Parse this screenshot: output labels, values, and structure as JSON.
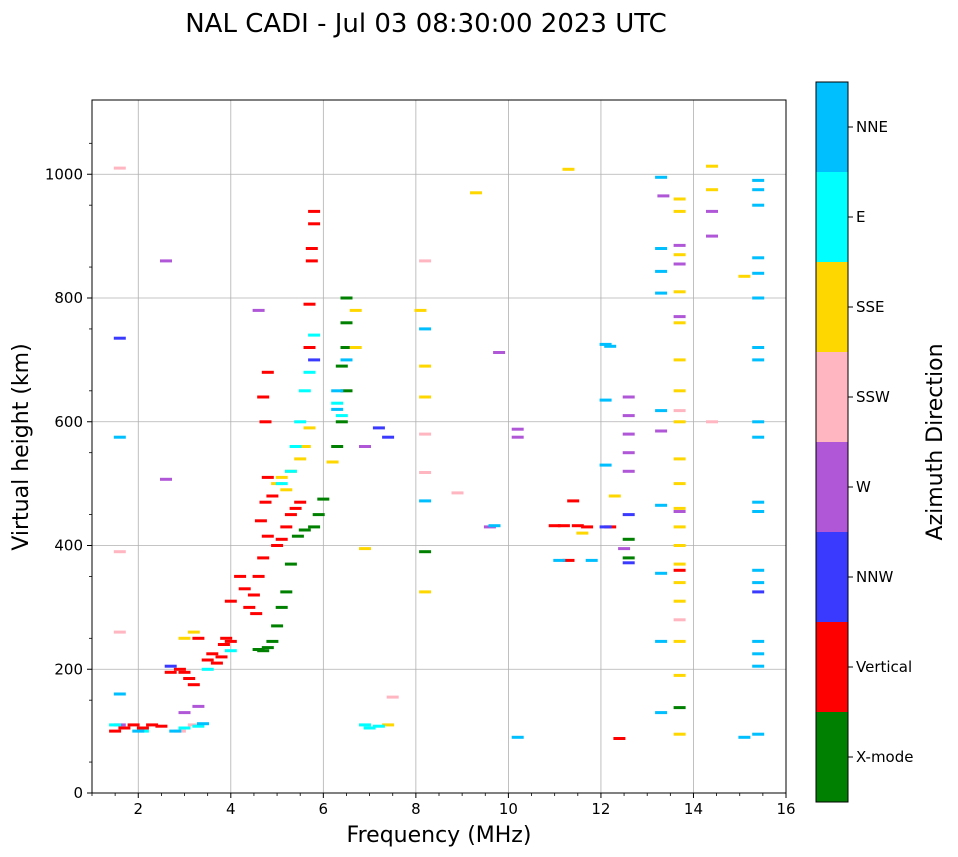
{
  "chart_data": {
    "type": "scatter",
    "title": "NAL CADI - Jul 03 08:30:00 2023 UTC",
    "xlabel": "Frequency (MHz)",
    "ylabel": "Virtual height (km)",
    "xlim": [
      1,
      16
    ],
    "ylim": [
      0,
      1120
    ],
    "xticks": [
      2,
      4,
      6,
      8,
      10,
      12,
      14,
      16
    ],
    "yticks": [
      0,
      200,
      400,
      600,
      800,
      1000
    ],
    "grid": true,
    "colorbar": {
      "title": "Azimuth Direction",
      "categories": [
        {
          "label": "X-mode",
          "color": "#008000"
        },
        {
          "label": "Vertical",
          "color": "#ff0000"
        },
        {
          "label": "NNW",
          "color": "#3a3aff"
        },
        {
          "label": "W",
          "color": "#b057d8"
        },
        {
          "label": "SSW",
          "color": "#ffb6c1"
        },
        {
          "label": "SSE",
          "color": "#ffd700"
        },
        {
          "label": "E",
          "color": "#00ffff"
        },
        {
          "label": "NNE",
          "color": "#00bfff"
        }
      ]
    },
    "series": [
      {
        "name": "Vertical",
        "color": "#ff0000",
        "points": [
          [
            1.5,
            100
          ],
          [
            1.7,
            105
          ],
          [
            1.9,
            110
          ],
          [
            2.1,
            105
          ],
          [
            2.3,
            110
          ],
          [
            2.5,
            108
          ],
          [
            2.7,
            195
          ],
          [
            2.9,
            200
          ],
          [
            3.0,
            195
          ],
          [
            3.1,
            185
          ],
          [
            3.2,
            175
          ],
          [
            3.3,
            250
          ],
          [
            3.5,
            215
          ],
          [
            3.6,
            225
          ],
          [
            3.7,
            210
          ],
          [
            3.8,
            220
          ],
          [
            3.85,
            240
          ],
          [
            3.9,
            250
          ],
          [
            4.0,
            245
          ],
          [
            4.0,
            310
          ],
          [
            4.2,
            350
          ],
          [
            4.3,
            330
          ],
          [
            4.4,
            300
          ],
          [
            4.5,
            320
          ],
          [
            4.55,
            290
          ],
          [
            4.6,
            350
          ],
          [
            4.65,
            440
          ],
          [
            4.7,
            380
          ],
          [
            4.8,
            415
          ],
          [
            4.75,
            470
          ],
          [
            4.8,
            510
          ],
          [
            4.7,
            640
          ],
          [
            4.75,
            600
          ],
          [
            4.8,
            680
          ],
          [
            4.9,
            480
          ],
          [
            5.0,
            400
          ],
          [
            5.1,
            410
          ],
          [
            5.2,
            430
          ],
          [
            5.3,
            450
          ],
          [
            5.4,
            460
          ],
          [
            5.5,
            470
          ],
          [
            5.7,
            720
          ],
          [
            5.7,
            790
          ],
          [
            5.75,
            880
          ],
          [
            5.8,
            920
          ],
          [
            5.8,
            940
          ],
          [
            5.75,
            860
          ],
          [
            11.0,
            432
          ],
          [
            11.2,
            432
          ],
          [
            11.5,
            432
          ],
          [
            11.3,
            376
          ],
          [
            11.7,
            430
          ],
          [
            12.2,
            430
          ],
          [
            12.4,
            88
          ],
          [
            13.7,
            360
          ],
          [
            11.4,
            472
          ]
        ]
      },
      {
        "name": "X-mode",
        "color": "#008000",
        "points": [
          [
            4.6,
            232
          ],
          [
            4.7,
            230
          ],
          [
            4.8,
            235
          ],
          [
            4.9,
            245
          ],
          [
            5.0,
            270
          ],
          [
            5.1,
            300
          ],
          [
            5.2,
            325
          ],
          [
            5.3,
            370
          ],
          [
            5.45,
            415
          ],
          [
            5.6,
            425
          ],
          [
            5.8,
            430
          ],
          [
            5.9,
            450
          ],
          [
            6.0,
            475
          ],
          [
            6.3,
            560
          ],
          [
            6.4,
            600
          ],
          [
            6.5,
            650
          ],
          [
            6.4,
            690
          ],
          [
            6.5,
            720
          ],
          [
            6.5,
            760
          ],
          [
            6.5,
            800
          ],
          [
            12.6,
            380
          ],
          [
            12.6,
            410
          ],
          [
            13.7,
            138
          ],
          [
            8.2,
            390
          ]
        ]
      },
      {
        "name": "NNW",
        "color": "#3a3aff",
        "points": [
          [
            1.6,
            735
          ],
          [
            2.7,
            205
          ],
          [
            5.8,
            700
          ],
          [
            7.2,
            590
          ],
          [
            7.4,
            575
          ],
          [
            12.1,
            430
          ],
          [
            12.6,
            450
          ],
          [
            12.6,
            372
          ],
          [
            15.4,
            325
          ]
        ]
      },
      {
        "name": "W",
        "color": "#b057d8",
        "points": [
          [
            1.6,
            110
          ],
          [
            2.6,
            860
          ],
          [
            2.6,
            507
          ],
          [
            3.0,
            130
          ],
          [
            3.3,
            140
          ],
          [
            4.6,
            780
          ],
          [
            6.9,
            560
          ],
          [
            9.6,
            430
          ],
          [
            9.8,
            712
          ],
          [
            10.2,
            588
          ],
          [
            10.2,
            575
          ],
          [
            12.6,
            640
          ],
          [
            12.6,
            610
          ],
          [
            12.6,
            580
          ],
          [
            12.6,
            550
          ],
          [
            12.6,
            520
          ],
          [
            13.3,
            585
          ],
          [
            13.35,
            965
          ],
          [
            13.7,
            885
          ],
          [
            13.7,
            855
          ],
          [
            13.7,
            770
          ],
          [
            14.4,
            940
          ],
          [
            14.4,
            900
          ],
          [
            13.7,
            455
          ],
          [
            12.5,
            395
          ]
        ]
      },
      {
        "name": "SSW",
        "color": "#ffb6c1",
        "points": [
          [
            1.6,
            1010
          ],
          [
            1.6,
            390
          ],
          [
            1.6,
            260
          ],
          [
            2.9,
            100
          ],
          [
            3.2,
            110
          ],
          [
            7.5,
            155
          ],
          [
            8.2,
            860
          ],
          [
            8.2,
            580
          ],
          [
            8.2,
            518
          ],
          [
            8.9,
            485
          ],
          [
            13.7,
            280
          ],
          [
            13.7,
            618
          ],
          [
            14.4,
            600
          ]
        ]
      },
      {
        "name": "SSE",
        "color": "#ffd700",
        "points": [
          [
            3.0,
            250
          ],
          [
            3.2,
            260
          ],
          [
            5.0,
            500
          ],
          [
            5.1,
            510
          ],
          [
            5.2,
            490
          ],
          [
            5.3,
            520
          ],
          [
            5.5,
            540
          ],
          [
            5.6,
            560
          ],
          [
            5.7,
            590
          ],
          [
            6.2,
            535
          ],
          [
            6.7,
            720
          ],
          [
            6.7,
            780
          ],
          [
            6.9,
            395
          ],
          [
            8.1,
            780
          ],
          [
            8.2,
            690
          ],
          [
            8.2,
            640
          ],
          [
            8.2,
            325
          ],
          [
            9.3,
            970
          ],
          [
            11.3,
            1008
          ],
          [
            11.6,
            420
          ],
          [
            12.3,
            480
          ],
          [
            13.7,
            960
          ],
          [
            13.7,
            940
          ],
          [
            13.7,
            870
          ],
          [
            13.7,
            810
          ],
          [
            13.7,
            760
          ],
          [
            13.7,
            700
          ],
          [
            13.7,
            650
          ],
          [
            13.7,
            600
          ],
          [
            13.7,
            540
          ],
          [
            13.7,
            500
          ],
          [
            13.7,
            460
          ],
          [
            13.7,
            430
          ],
          [
            13.7,
            400
          ],
          [
            13.7,
            370
          ],
          [
            13.7,
            340
          ],
          [
            13.7,
            310
          ],
          [
            13.7,
            245
          ],
          [
            13.7,
            190
          ],
          [
            13.7,
            95
          ],
          [
            14.4,
            1013
          ],
          [
            14.4,
            975
          ],
          [
            15.1,
            835
          ],
          [
            7.4,
            110
          ]
        ]
      },
      {
        "name": "E",
        "color": "#00ffff",
        "points": [
          [
            1.5,
            110
          ],
          [
            2.1,
            100
          ],
          [
            3.0,
            105
          ],
          [
            3.3,
            108
          ],
          [
            5.1,
            500
          ],
          [
            5.3,
            520
          ],
          [
            5.4,
            560
          ],
          [
            5.5,
            600
          ],
          [
            5.6,
            650
          ],
          [
            5.7,
            680
          ],
          [
            5.8,
            740
          ],
          [
            6.3,
            630
          ],
          [
            6.4,
            610
          ],
          [
            6.9,
            110
          ],
          [
            7.0,
            105
          ],
          [
            7.2,
            108
          ],
          [
            3.5,
            200
          ],
          [
            4.0,
            230
          ]
        ]
      },
      {
        "name": "NNE",
        "color": "#00bfff",
        "points": [
          [
            1.6,
            575
          ],
          [
            1.6,
            160
          ],
          [
            2.0,
            100
          ],
          [
            2.8,
            100
          ],
          [
            3.4,
            112
          ],
          [
            6.3,
            650
          ],
          [
            6.3,
            620
          ],
          [
            6.5,
            700
          ],
          [
            8.2,
            750
          ],
          [
            8.2,
            472
          ],
          [
            10.2,
            90
          ],
          [
            11.1,
            376
          ],
          [
            11.8,
            376
          ],
          [
            12.1,
            725
          ],
          [
            12.1,
            635
          ],
          [
            12.1,
            530
          ],
          [
            13.3,
            995
          ],
          [
            13.3,
            880
          ],
          [
            13.3,
            843
          ],
          [
            13.3,
            808
          ],
          [
            13.3,
            618
          ],
          [
            13.3,
            465
          ],
          [
            13.3,
            355
          ],
          [
            13.3,
            245
          ],
          [
            13.3,
            130
          ],
          [
            15.4,
            990
          ],
          [
            15.4,
            975
          ],
          [
            15.4,
            950
          ],
          [
            15.4,
            865
          ],
          [
            15.4,
            840
          ],
          [
            15.4,
            800
          ],
          [
            15.4,
            720
          ],
          [
            15.4,
            700
          ],
          [
            15.4,
            600
          ],
          [
            15.4,
            575
          ],
          [
            15.4,
            470
          ],
          [
            15.4,
            455
          ],
          [
            15.4,
            360
          ],
          [
            15.4,
            340
          ],
          [
            15.4,
            245
          ],
          [
            15.4,
            225
          ],
          [
            15.4,
            205
          ],
          [
            15.4,
            95
          ],
          [
            15.1,
            90
          ],
          [
            9.7,
            432
          ],
          [
            12.2,
            722
          ]
        ]
      }
    ]
  }
}
